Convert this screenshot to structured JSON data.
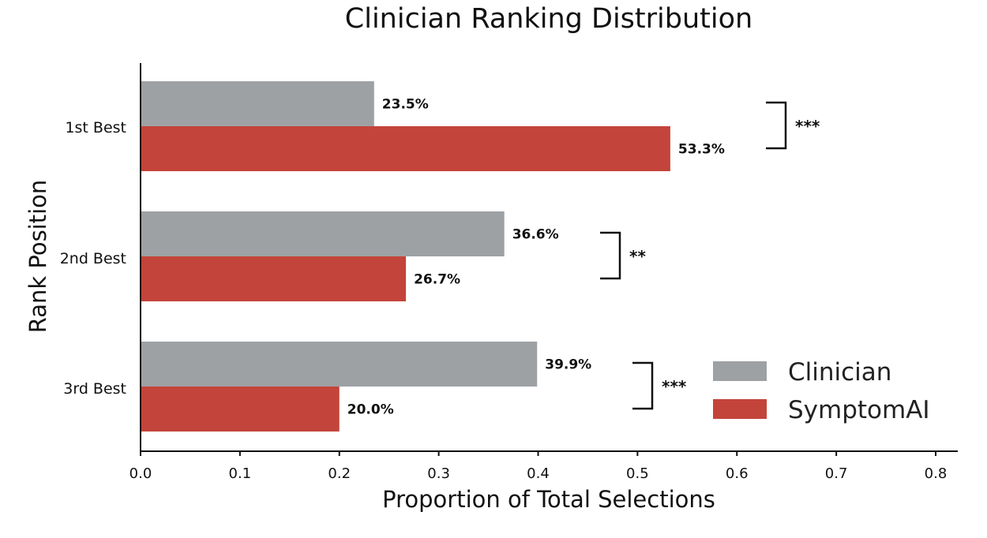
{
  "chart_data": {
    "type": "bar",
    "orientation": "horizontal",
    "title": "Clinician Ranking Distribution",
    "xlabel": "Proportion of Total Selections",
    "ylabel": "Rank Position",
    "categories": [
      "1st Best",
      "2nd Best",
      "3rd Best"
    ],
    "xlim": [
      0,
      0.8
    ],
    "xticks": [
      "0.0",
      "0.1",
      "0.2",
      "0.3",
      "0.4",
      "0.5",
      "0.6",
      "0.7",
      "0.8"
    ],
    "series": [
      {
        "name": "Clinician",
        "color": "#9EA1A4",
        "values": [
          0.235,
          0.366,
          0.399
        ],
        "labels": [
          "23.5%",
          "36.6%",
          "39.9%"
        ]
      },
      {
        "name": "SymptomAI",
        "color": "#C3443A",
        "values": [
          0.533,
          0.267,
          0.2
        ],
        "labels": [
          "53.3%",
          "26.7%",
          "20.0%"
        ]
      }
    ],
    "significance": [
      "***",
      "**",
      "***"
    ],
    "legend_position": "bottom-right",
    "grid": false
  }
}
